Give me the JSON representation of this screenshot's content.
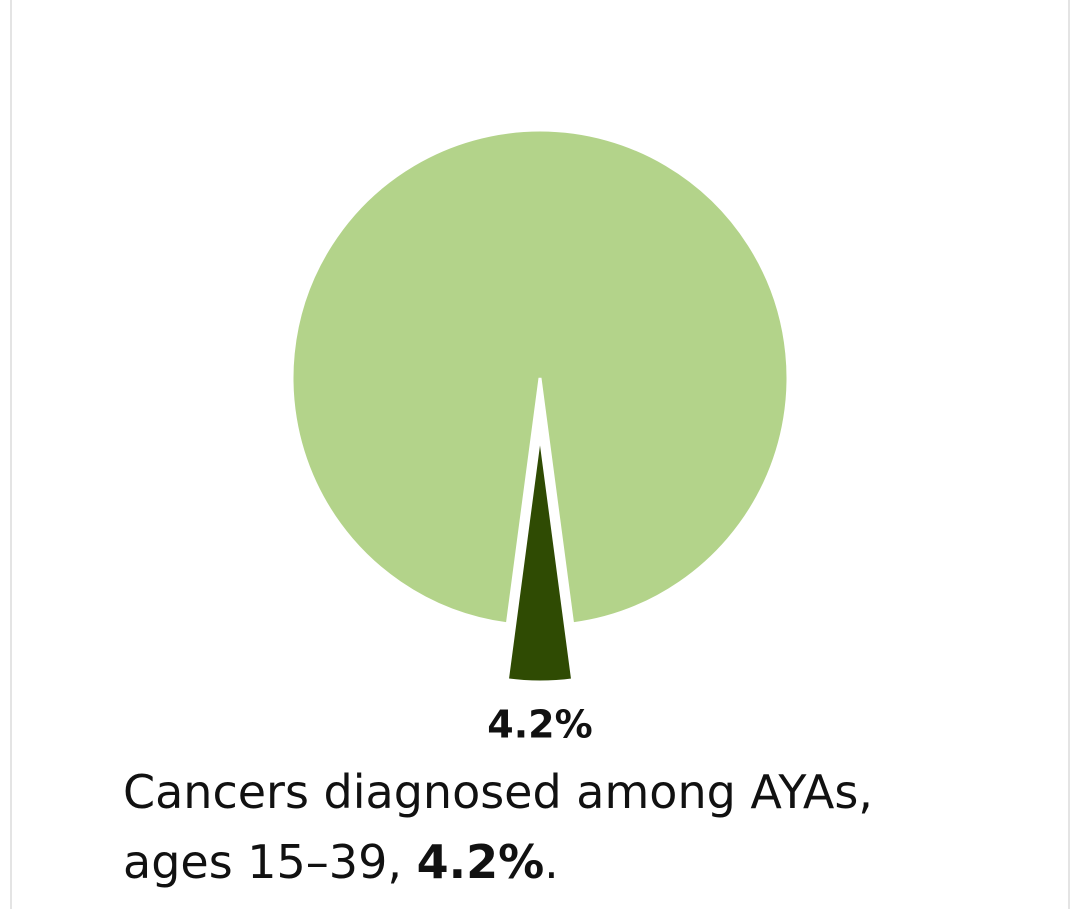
{
  "chart_data": {
    "type": "pie",
    "categories": [
      null,
      null
    ],
    "values": [
      95.8,
      4.2
    ],
    "value_labels": [
      null,
      "4.2%"
    ],
    "colors": [
      "#b3d38a",
      "#2f4b03"
    ],
    "caption": {
      "line1": "Cancers diagnosed among AYAs,",
      "line2": "ages 15–39,",
      "emphasis": "4.2%",
      "end": "."
    }
  }
}
